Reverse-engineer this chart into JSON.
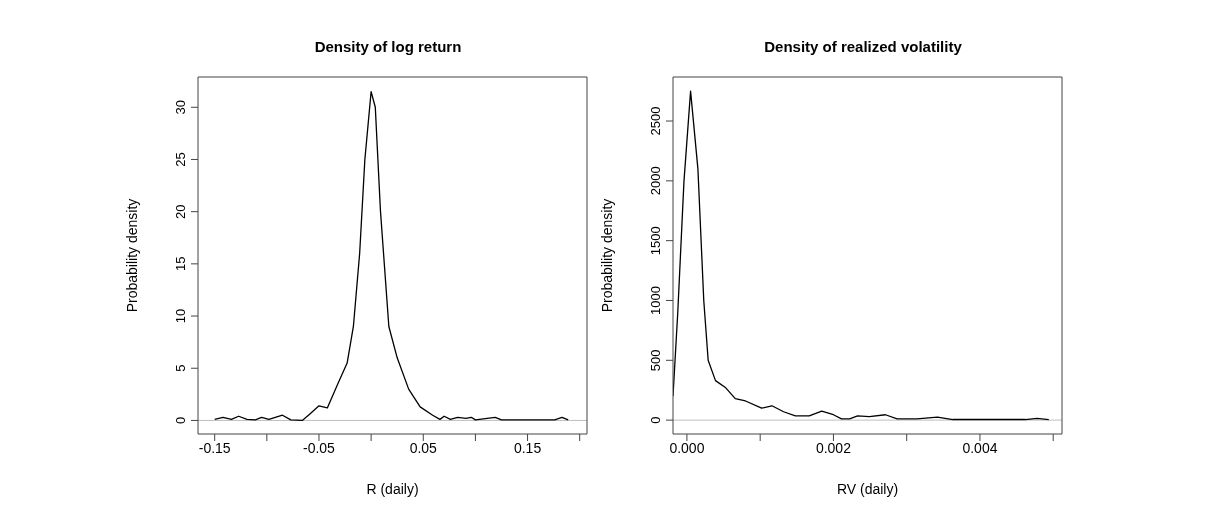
{
  "chart_data": [
    {
      "type": "line",
      "title": "Density of log return",
      "xlabel": "R (daily)",
      "ylabel": "Probability density",
      "series": [
        {
          "color": "#000000",
          "x": [
            -0.15,
            -0.142,
            -0.134,
            -0.127,
            -0.119,
            -0.111,
            -0.105,
            -0.098,
            -0.085,
            -0.077,
            -0.066,
            -0.059,
            -0.05,
            -0.042,
            -0.032,
            -0.023,
            -0.017,
            -0.011,
            -0.006,
            0,
            0.004,
            0.009,
            0.017,
            0.025,
            0.036,
            0.047,
            0.059,
            0.066,
            0.07,
            0.076,
            0.083,
            0.091,
            0.096,
            0.1,
            0.119,
            0.125,
            0.176,
            0.183,
            0.189
          ],
          "values": [
            0.1,
            0.3,
            0.1,
            0.4,
            0.1,
            0.05,
            0.3,
            0.1,
            0.5,
            0.05,
            0,
            0.6,
            1.4,
            1.2,
            3.5,
            5.5,
            9,
            16,
            25,
            31.5,
            30,
            20,
            9,
            6,
            3,
            1.3,
            0.5,
            0.1,
            0.4,
            0.1,
            0.3,
            0.2,
            0.3,
            0.05,
            0.3,
            0.05,
            0.05,
            0.3,
            0.05
          ]
        }
      ],
      "xlim": [
        -0.166,
        0.207
      ],
      "xticks": [
        -0.15,
        {
          "value": -0.1,
          "label": null
        },
        -0.05,
        {
          "value": 0,
          "label": null
        },
        0.05,
        {
          "value": 0.1,
          "label": null
        },
        0.15,
        {
          "value": 0.2,
          "label": null
        }
      ],
      "ylim": [
        -1.3,
        32.9
      ],
      "yticks": [
        0,
        5,
        10,
        15,
        20,
        25,
        30
      ],
      "ref_lines": [
        {
          "axis": "y",
          "value": 0,
          "color": "#bebebe"
        }
      ],
      "grid": false,
      "legend": false,
      "marker": "none",
      "line_style": "solid"
    },
    {
      "type": "line",
      "title": "Density of realized volatility",
      "xlabel": "RV (daily)",
      "ylabel": "Probability density",
      "series": [
        {
          "color": "#000000",
          "x": [
            -0.00019,
            -0.000125,
            -4e-05,
            5e-05,
            0.00015,
            0.00023,
            0.00029,
            0.00039,
            0.00053,
            0.00066,
            0.0008,
            0.00102,
            0.00116,
            0.00132,
            0.00148,
            0.00167,
            0.00184,
            0.002,
            0.00211,
            0.00222,
            0.00233,
            0.00249,
            0.00271,
            0.00287,
            0.00314,
            0.00342,
            0.00363,
            0.00462,
            0.00478,
            0.00494
          ],
          "values": [
            200,
            900,
            2000,
            2750,
            2100,
            1000,
            500,
            330,
            270,
            180,
            160,
            100,
            120,
            70,
            35,
            35,
            75,
            45,
            10,
            10,
            35,
            30,
            45,
            10,
            10,
            25,
            5,
            5,
            15,
            5
          ]
        }
      ],
      "xlim": [
        -0.00019,
        0.00512
      ],
      "xticks": [
        {
          "value": 0,
          "label": "0.000"
        },
        {
          "value": 0.001,
          "label": null
        },
        {
          "value": 0.002,
          "label": "0.002"
        },
        {
          "value": 0.003,
          "label": null
        },
        {
          "value": 0.004,
          "label": "0.004"
        },
        {
          "value": 0.005,
          "label": null
        }
      ],
      "ylim": [
        -116,
        2868
      ],
      "yticks": [
        0,
        500,
        1000,
        1500,
        2000,
        2500
      ],
      "ref_lines": [
        {
          "axis": "y",
          "value": 0,
          "color": "#bebebe"
        }
      ],
      "grid": false,
      "legend": false,
      "marker": "none",
      "line_style": "solid"
    }
  ]
}
